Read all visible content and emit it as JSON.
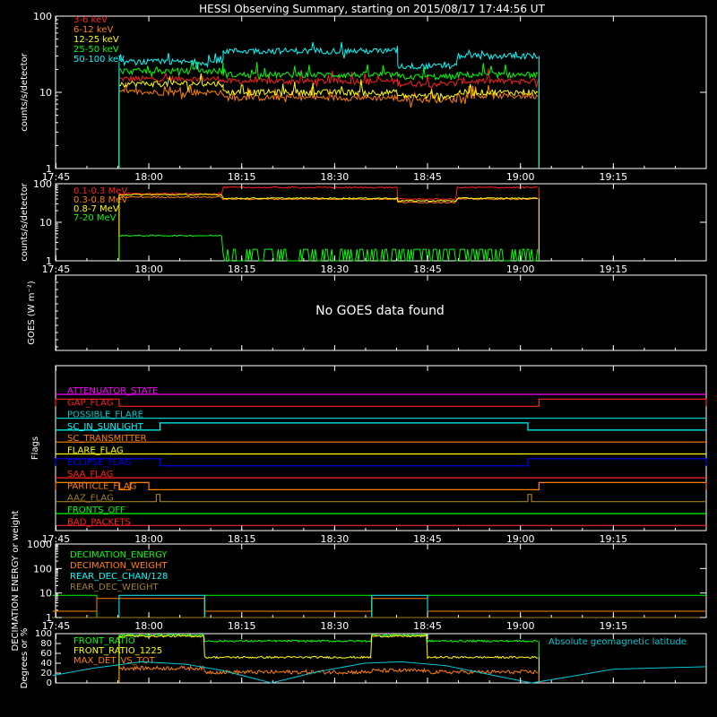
{
  "title": "HESSI Observing Summary, starting on 2015/08/17 17:44:56 UT",
  "time_ticks": [
    "17:45",
    "18:00",
    "18:15",
    "18:30",
    "18:45",
    "19:00",
    "19:15"
  ],
  "colors": {
    "red": "#ff2020",
    "orange": "#ff8000",
    "yellow": "#ffff00",
    "green": "#00ff00",
    "cyan": "#00ffff",
    "magenta": "#ff00ff",
    "blue": "#0000ff",
    "olive": "#a08020",
    "white": "#ffffff"
  },
  "chart_data": [
    {
      "id": "xray",
      "type": "line",
      "ylabel": "counts/s/detector",
      "yscale": "log",
      "ylim": [
        1,
        100
      ],
      "yticks": [
        "1",
        "10",
        "100"
      ],
      "legend_placement": "top-left",
      "series": [
        {
          "name": "3-6 keV",
          "color": "#ff2020",
          "level": 14,
          "segments": [
            [
              17.92,
              18.2,
              15
            ],
            [
              18.2,
              18.67,
              14
            ],
            [
              18.67,
              18.83,
              13
            ],
            [
              18.83,
              19.05,
              14
            ]
          ]
        },
        {
          "name": "6-12 keV",
          "color": "#ff8000",
          "level": 9,
          "segments": [
            [
              17.92,
              18.2,
              10
            ],
            [
              18.2,
              18.67,
              8.5
            ],
            [
              18.67,
              18.83,
              8
            ],
            [
              18.83,
              19.05,
              9
            ]
          ]
        },
        {
          "name": "12-25 keV",
          "color": "#ffff00",
          "level": 11,
          "segments": [
            [
              17.92,
              18.2,
              13
            ],
            [
              18.2,
              18.67,
              10
            ],
            [
              18.67,
              18.83,
              9
            ],
            [
              18.83,
              19.05,
              10
            ]
          ]
        },
        {
          "name": "25-50 keV",
          "color": "#00ff00",
          "level": 17,
          "segments": [
            [
              17.92,
              18.2,
              19
            ],
            [
              18.2,
              18.67,
              17
            ],
            [
              18.67,
              18.83,
              16
            ],
            [
              18.83,
              19.05,
              17
            ]
          ]
        },
        {
          "name": "50-100 keV",
          "color": "#00ffff",
          "level": 28,
          "segments": [
            [
              17.92,
              18.2,
              25
            ],
            [
              18.2,
              18.67,
              35
            ],
            [
              18.67,
              18.83,
              22
            ],
            [
              18.83,
              19.05,
              30
            ]
          ]
        }
      ]
    },
    {
      "id": "gamma",
      "type": "line",
      "ylabel": "counts/s/detector",
      "yscale": "log",
      "ylim": [
        1,
        100
      ],
      "yticks": [
        "1",
        "10",
        "100"
      ],
      "legend_placement": "top-left",
      "series": [
        {
          "name": "0.1-0.3 MeV",
          "color": "#ff2020",
          "segments": [
            [
              17.92,
              18.2,
              55
            ],
            [
              18.2,
              18.67,
              80
            ],
            [
              18.67,
              18.83,
              40
            ],
            [
              18.83,
              19.05,
              80
            ]
          ]
        },
        {
          "name": "0.3-0.8 MeV",
          "color": "#ff8000",
          "segments": [
            [
              17.92,
              18.2,
              45
            ],
            [
              18.2,
              18.67,
              40
            ],
            [
              18.67,
              18.83,
              33
            ],
            [
              18.83,
              19.05,
              40
            ]
          ]
        },
        {
          "name": "0.8-7 MeV",
          "color": "#ffff00",
          "segments": [
            [
              17.92,
              18.2,
              52
            ],
            [
              18.2,
              18.67,
              42
            ],
            [
              18.67,
              18.83,
              36
            ],
            [
              18.83,
              19.05,
              42
            ]
          ]
        },
        {
          "name": "7-20 MeV",
          "color": "#00ff00",
          "segments": [
            [
              17.92,
              18.2,
              4.5
            ],
            [
              18.2,
              18.67,
              1.5
            ],
            [
              18.67,
              18.83,
              1.5
            ],
            [
              18.83,
              19.05,
              1.5
            ]
          ]
        }
      ]
    },
    {
      "id": "goes",
      "ylabel": "GOES (W m⁻²)",
      "message": "No GOES data found"
    },
    {
      "id": "flags",
      "ylabel": "Flags",
      "flags": [
        {
          "name": "ATTENUATOR_STATE",
          "color": "#ff00ff",
          "on": []
        },
        {
          "name": "GAP_FLAG",
          "color": "#ff2020",
          "on": [
            [
              17.74,
              17.92
            ],
            [
              19.05,
              19.5
            ]
          ]
        },
        {
          "name": "POSSIBLE_FLARE",
          "color": "#00c8c8",
          "on": []
        },
        {
          "name": "SC_IN_SUNLIGHT",
          "color": "#00ffff",
          "on": [
            [
              18.03,
              19.02
            ]
          ]
        },
        {
          "name": "SC_TRANSMITTER",
          "color": "#ff8000",
          "on": []
        },
        {
          "name": "FLARE_FLAG",
          "color": "#ffff00",
          "on": []
        },
        {
          "name": "ECLIPSE_FLAG",
          "color": "#0000ff",
          "on": [
            [
              17.74,
              18.03
            ],
            [
              19.02,
              19.5
            ]
          ]
        },
        {
          "name": "SAA_FLAG",
          "color": "#ff2020",
          "on": []
        },
        {
          "name": "PARTICLE_FLAG",
          "color": "#ff8000",
          "on": [
            [
              17.74,
              17.92
            ],
            [
              17.95,
              18.0
            ],
            [
              19.05,
              19.5
            ]
          ]
        },
        {
          "name": "AAZ_FLAG",
          "color": "#a08020",
          "on": [
            [
              18.02,
              18.03
            ],
            [
              19.02,
              19.03
            ]
          ]
        },
        {
          "name": "FRONTS_OFF",
          "color": "#00ff00",
          "on": []
        },
        {
          "name": "BAD_PACKETS",
          "color": "#ff2020",
          "on": []
        }
      ]
    },
    {
      "id": "decimation",
      "type": "line",
      "ylabel": "DECIMATION ENERGY or weight",
      "yscale": "log",
      "ylim": [
        1,
        1000
      ],
      "yticks": [
        "1",
        "10",
        "100",
        "1000"
      ],
      "series": [
        {
          "name": "DECIMATION_ENERGY",
          "color": "#00ff00",
          "steps": [
            [
              17.74,
              17.86,
              8
            ],
            [
              17.86,
              18.15,
              1
            ],
            [
              18.15,
              18.6,
              8
            ],
            [
              18.6,
              18.75,
              1
            ],
            [
              18.75,
              19.5,
              8
            ]
          ]
        },
        {
          "name": "DECIMATION_WEIGHT",
          "color": "#ff8000",
          "steps": [
            [
              17.74,
              17.86,
              1.8
            ],
            [
              17.86,
              18.15,
              6
            ],
            [
              18.15,
              18.6,
              1.8
            ],
            [
              18.6,
              18.75,
              6
            ],
            [
              18.75,
              19.5,
              1.8
            ]
          ]
        },
        {
          "name": "REAR_DEC_CHAN/128",
          "color": "#00ffff",
          "steps": [
            [
              17.74,
              17.92,
              1
            ],
            [
              17.92,
              18.15,
              8
            ],
            [
              18.15,
              18.6,
              1
            ],
            [
              18.6,
              18.75,
              8
            ],
            [
              18.75,
              19.5,
              1
            ]
          ]
        },
        {
          "name": "REAR_DEC_WEIGHT",
          "color": "#a08020",
          "steps": [
            [
              17.74,
              19.5,
              1
            ]
          ]
        }
      ]
    },
    {
      "id": "ratios",
      "type": "line",
      "ylabel": "Degrees or %",
      "ylim": [
        0,
        100
      ],
      "yticks": [
        "0",
        "20",
        "40",
        "60",
        "80",
        "100"
      ],
      "annotation": "Absolute geomagnetic latitude",
      "series": [
        {
          "name": "FRONT_RATIO",
          "color": "#00ff00",
          "segments": [
            [
              17.92,
              18.15,
              97
            ],
            [
              18.15,
              18.6,
              85
            ],
            [
              18.6,
              18.75,
              97
            ],
            [
              18.75,
              19.05,
              85
            ]
          ]
        },
        {
          "name": "FRONT_RATIO_1225",
          "color": "#ffff00",
          "segments": [
            [
              17.92,
              18.15,
              95
            ],
            [
              18.15,
              18.6,
              52
            ],
            [
              18.6,
              18.75,
              95
            ],
            [
              18.75,
              19.05,
              52
            ]
          ]
        },
        {
          "name": "MAX_DET_VS_TOT",
          "color": "#ff8000",
          "segments": [
            [
              17.92,
              18.15,
              30
            ],
            [
              18.15,
              18.6,
              22
            ],
            [
              18.6,
              18.75,
              25
            ],
            [
              18.75,
              19.05,
              22
            ]
          ]
        },
        {
          "name": "Absolute geomagnetic latitude",
          "color": "#00c8d8",
          "curve": [
            [
              17.74,
              15
            ],
            [
              17.85,
              30
            ],
            [
              17.98,
              43
            ],
            [
              18.1,
              38
            ],
            [
              18.2,
              25
            ],
            [
              18.33,
              0
            ],
            [
              18.45,
              22
            ],
            [
              18.58,
              40
            ],
            [
              18.68,
              43
            ],
            [
              18.8,
              35
            ],
            [
              18.93,
              15
            ],
            [
              19.03,
              0
            ],
            [
              19.15,
              15
            ],
            [
              19.25,
              28
            ],
            [
              19.5,
              33
            ]
          ]
        }
      ]
    }
  ]
}
